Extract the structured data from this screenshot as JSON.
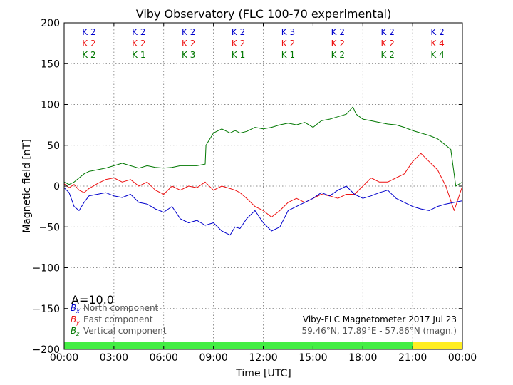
{
  "chart_data": {
    "type": "line",
    "title": "Viby Observatory (FLC 100-70 experimental)",
    "xlabel": "Time [UTC]",
    "ylabel": "Magnetic field [nT]",
    "ylim": [
      -200,
      200
    ],
    "xlim_hours": [
      0,
      24
    ],
    "yticks": [
      "200",
      "150",
      "100",
      "50",
      "0",
      "−50",
      "−100",
      "−150",
      "−200"
    ],
    "xticks": [
      "00:00",
      "03:00",
      "06:00",
      "09:00",
      "12:00",
      "15:00",
      "18:00",
      "21:00",
      "00:00"
    ],
    "grid": true,
    "amplitude_label": "A=10.0",
    "k_indices": {
      "north": [
        "K 2",
        "K 2",
        "K 2",
        "K 2",
        "K 3",
        "K 2",
        "K 2",
        "K 2"
      ],
      "east": [
        "K 2",
        "K 2",
        "K 2",
        "K 2",
        "K 2",
        "K 2",
        "K 2",
        "K 4"
      ],
      "vertical": [
        "K 2",
        "K 1",
        "K 3",
        "K 1",
        "K 1",
        "K 2",
        "K 2",
        "K 4"
      ]
    },
    "daylight_bar": [
      {
        "from_hour": 0,
        "to_hour": 21,
        "color": "#44ee44"
      },
      {
        "from_hour": 21,
        "to_hour": 24,
        "color": "#ffee22"
      }
    ],
    "legend": [
      {
        "symbol": "B",
        "sub": "x",
        "text": "North component",
        "color": "#0000cc"
      },
      {
        "symbol": "B",
        "sub": "y",
        "text": "East component",
        "color": "#ee1111"
      },
      {
        "symbol": "B",
        "sub": "z",
        "text": "Vertical component",
        "color": "#007700"
      }
    ],
    "info": {
      "line1": "Viby-FLC Magnetometer 2017 Jul 23",
      "line2": "59.46°N, 17.89°E - 57.86°N (magn.)"
    },
    "series": [
      {
        "name": "North component",
        "color": "#0000cc",
        "x": [
          0,
          0.3,
          0.6,
          0.9,
          1.2,
          1.5,
          2.0,
          2.5,
          3.0,
          3.5,
          4.0,
          4.5,
          5.0,
          5.5,
          6.0,
          6.5,
          7.0,
          7.5,
          8.0,
          8.5,
          9.0,
          9.5,
          10.0,
          10.3,
          10.6,
          11.0,
          11.5,
          12.0,
          12.5,
          13.0,
          13.5,
          14.0,
          14.5,
          15.0,
          15.5,
          16.0,
          16.5,
          17.0,
          17.5,
          18.0,
          18.5,
          19.0,
          19.5,
          20.0,
          20.5,
          21.0,
          21.5,
          22.0,
          22.5,
          23.0,
          23.5,
          24.0
        ],
        "y": [
          -2,
          -8,
          -25,
          -30,
          -20,
          -12,
          -10,
          -8,
          -12,
          -14,
          -10,
          -20,
          -22,
          -28,
          -32,
          -25,
          -40,
          -45,
          -42,
          -48,
          -45,
          -55,
          -60,
          -50,
          -52,
          -40,
          -30,
          -45,
          -55,
          -50,
          -30,
          -25,
          -20,
          -15,
          -8,
          -12,
          -5,
          0,
          -10,
          -15,
          -12,
          -8,
          -5,
          -15,
          -20,
          -25,
          -28,
          -30,
          -25,
          -22,
          -20,
          -18
        ]
      },
      {
        "name": "East component",
        "color": "#ee1111",
        "x": [
          0,
          0.3,
          0.6,
          0.9,
          1.2,
          1.5,
          2.0,
          2.5,
          3.0,
          3.5,
          4.0,
          4.5,
          5.0,
          5.5,
          6.0,
          6.5,
          7.0,
          7.5,
          8.0,
          8.5,
          9.0,
          9.5,
          10.0,
          10.3,
          10.6,
          11.0,
          11.5,
          12.0,
          12.5,
          13.0,
          13.5,
          14.0,
          14.5,
          15.0,
          15.5,
          16.0,
          16.5,
          17.0,
          17.5,
          18.0,
          18.5,
          19.0,
          19.5,
          20.0,
          20.5,
          21.0,
          21.5,
          22.0,
          22.5,
          23.0,
          23.5,
          24.0
        ],
        "y": [
          3,
          -2,
          2,
          -5,
          -8,
          -3,
          3,
          8,
          10,
          5,
          8,
          0,
          5,
          -5,
          -10,
          0,
          -5,
          0,
          -2,
          5,
          -5,
          0,
          -3,
          -5,
          -8,
          -15,
          -25,
          -30,
          -38,
          -30,
          -20,
          -15,
          -20,
          -15,
          -10,
          -12,
          -15,
          -10,
          -10,
          0,
          10,
          5,
          5,
          10,
          15,
          30,
          40,
          30,
          20,
          0,
          -30,
          0
        ]
      },
      {
        "name": "Vertical component",
        "color": "#007700",
        "x": [
          0,
          0.3,
          0.6,
          0.9,
          1.2,
          1.5,
          2.0,
          2.5,
          3.0,
          3.5,
          4.0,
          4.5,
          5.0,
          5.5,
          6.0,
          6.5,
          7.0,
          7.5,
          8.0,
          8.5,
          8.55,
          9.0,
          9.5,
          10.0,
          10.3,
          10.6,
          11.0,
          11.5,
          12.0,
          12.5,
          13.0,
          13.5,
          14.0,
          14.5,
          15.0,
          15.5,
          16.0,
          16.5,
          17.0,
          17.4,
          17.6,
          18.0,
          18.5,
          19.0,
          19.5,
          20.0,
          20.5,
          21.0,
          21.5,
          22.0,
          22.5,
          23.0,
          23.3,
          23.6,
          24.0
        ],
        "y": [
          5,
          2,
          5,
          10,
          15,
          18,
          20,
          22,
          25,
          28,
          25,
          22,
          25,
          23,
          22,
          23,
          25,
          25,
          25,
          27,
          50,
          65,
          70,
          65,
          68,
          65,
          67,
          72,
          70,
          72,
          75,
          77,
          75,
          78,
          72,
          80,
          82,
          85,
          88,
          97,
          88,
          82,
          80,
          78,
          76,
          75,
          72,
          68,
          65,
          62,
          58,
          50,
          45,
          0,
          5
        ]
      }
    ]
  }
}
